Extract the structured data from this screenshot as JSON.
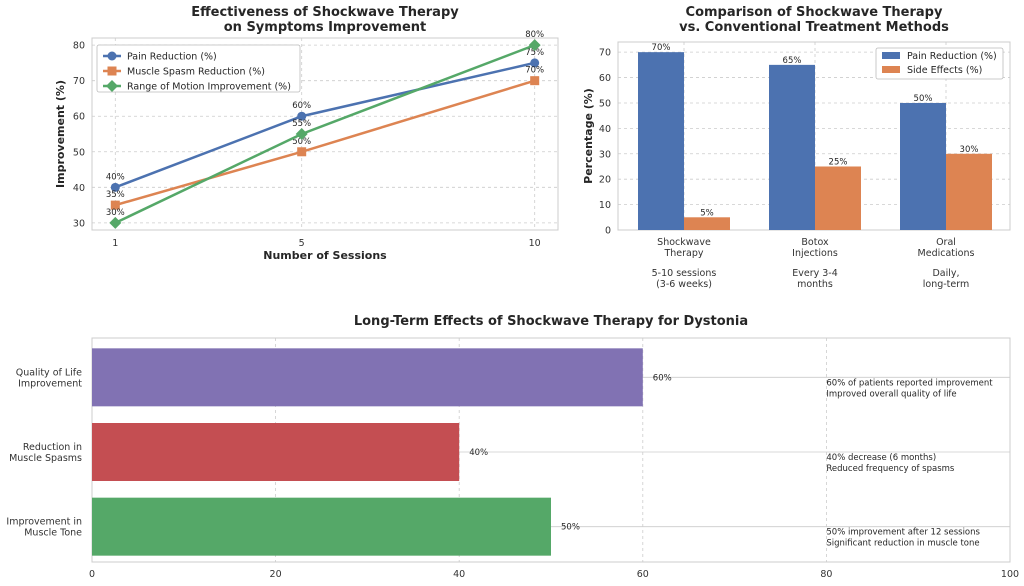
{
  "chart_data": [
    {
      "type": "line",
      "title": [
        "Effectiveness of Shockwave Therapy",
        "on Symptoms Improvement"
      ],
      "xlabel": "Number of Sessions",
      "ylabel": "Improvement (%)",
      "x": [
        1,
        5,
        10
      ],
      "xlim": [
        0.5,
        10.5
      ],
      "ylim": [
        28,
        82
      ],
      "yticks": [
        30,
        40,
        50,
        60,
        70,
        80
      ],
      "grid": true,
      "legend_position": "top-left",
      "series": [
        {
          "name": "Pain Reduction (%)",
          "values": [
            40,
            60,
            75
          ],
          "labels": [
            "40%",
            "60%",
            "75%"
          ],
          "color": "#4c72b0",
          "marker": "circle"
        },
        {
          "name": "Muscle Spasm Reduction (%)",
          "values": [
            35,
            50,
            70
          ],
          "labels": [
            "35%",
            "50%",
            "70%"
          ],
          "color": "#dd8452",
          "marker": "square"
        },
        {
          "name": "Range of Motion Improvement (%)",
          "values": [
            30,
            55,
            80
          ],
          "labels": [
            "30%",
            "55%",
            "80%"
          ],
          "color": "#55a868",
          "marker": "diamond"
        }
      ]
    },
    {
      "type": "bar",
      "title": [
        "Comparison of Shockwave Therapy",
        "vs. Conventional Treatment Methods"
      ],
      "xlabel": "",
      "ylabel": "Percentage (%)",
      "categories": [
        {
          "name": [
            "Shockwave",
            "Therapy"
          ],
          "note": [
            "5-10 sessions",
            "(3-6 weeks)"
          ]
        },
        {
          "name": [
            "Botox",
            "Injections"
          ],
          "note": [
            "Every 3-4",
            "months"
          ]
        },
        {
          "name": [
            "Oral",
            "Medications"
          ],
          "note": [
            "Daily,",
            "long-term"
          ]
        }
      ],
      "ylim": [
        0,
        74
      ],
      "yticks": [
        0,
        10,
        20,
        30,
        40,
        50,
        60,
        70
      ],
      "grid": true,
      "legend_position": "top-right",
      "series": [
        {
          "name": "Pain Reduction (%)",
          "values": [
            70,
            65,
            50
          ],
          "labels": [
            "70%",
            "65%",
            "50%"
          ],
          "color": "#4c72b0"
        },
        {
          "name": "Side Effects (%)",
          "values": [
            5,
            25,
            30
          ],
          "labels": [
            "5%",
            "25%",
            "30%"
          ],
          "color": "#dd8452"
        }
      ]
    },
    {
      "type": "bar",
      "orientation": "horizontal",
      "title": "Long-Term Effects of Shockwave Therapy for Dystonia",
      "xlim": [
        0,
        100
      ],
      "xticks": [
        0,
        20,
        40,
        60,
        80,
        100
      ],
      "grid": true,
      "bars": [
        {
          "label": [
            "Quality of Life",
            "Improvement"
          ],
          "value": 60,
          "value_label": "60%",
          "color": "#8172b3",
          "note": [
            "60% of patients reported improvement",
            "Improved overall quality of life"
          ]
        },
        {
          "label": [
            "Reduction in",
            "Muscle Spasms"
          ],
          "value": 40,
          "value_label": "40%",
          "color": "#c44e52",
          "note": [
            "40% decrease (6 months)",
            "Reduced frequency of spasms"
          ]
        },
        {
          "label": [
            "Improvement in",
            "Muscle Tone"
          ],
          "value": 50,
          "value_label": "50%",
          "color": "#55a868",
          "note": [
            "50% improvement after 12 sessions",
            "Significant reduction in muscle tone"
          ]
        }
      ]
    }
  ]
}
